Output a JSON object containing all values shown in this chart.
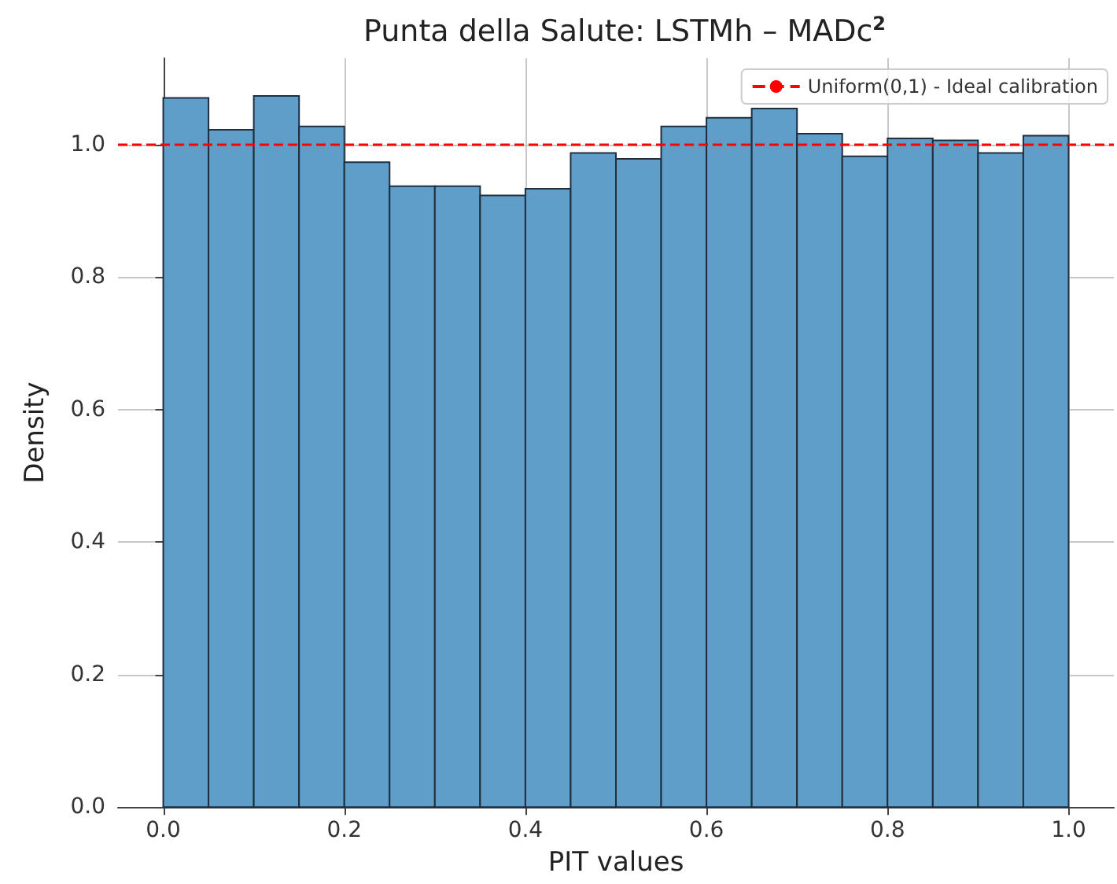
{
  "chart_data": {
    "type": "histogram",
    "title": "Punta della Salute: LSTMh – MADc$^{2}$",
    "xlabel": "PIT values",
    "ylabel": "Density",
    "bins": [
      0,
      0.05,
      0.1,
      0.15,
      0.2,
      0.25,
      0.3,
      0.35,
      0.4,
      0.45,
      0.5,
      0.55,
      0.6,
      0.65,
      0.7,
      0.75,
      0.8,
      0.85,
      0.9,
      0.95,
      1.0
    ],
    "values": [
      1.07,
      1.022,
      1.073,
      1.027,
      0.973,
      0.937,
      0.937,
      0.923,
      0.933,
      0.987,
      0.978,
      1.027,
      1.04,
      1.054,
      1.016,
      0.982,
      1.009,
      1.006,
      0.987,
      1.013
    ],
    "color": "#5f9ec9",
    "xlim": [
      -0.05,
      1.05
    ],
    "xticks": [
      {
        "value": 0,
        "label": "0.0"
      },
      {
        "value": 0.2,
        "label": "0.2"
      },
      {
        "value": 0.4,
        "label": "0.4"
      },
      {
        "value": 0.6,
        "label": "0.6"
      },
      {
        "value": 0.8,
        "label": "0.8"
      },
      {
        "value": 1,
        "label": "1.0"
      }
    ],
    "ylim": [
      0,
      1.13
    ],
    "yticks": [
      {
        "value": 0,
        "label": "0.0"
      },
      {
        "value": 0.2,
        "label": "0.2"
      },
      {
        "value": 0.4,
        "label": "0.4"
      },
      {
        "value": 0.6,
        "label": "0.6"
      },
      {
        "value": 0.8,
        "label": "0.8"
      },
      {
        "value": 1,
        "label": "1.0"
      }
    ],
    "grid": true,
    "legend": "top right",
    "ref_lines": [
      {
        "axis": "y",
        "value": 1.0,
        "label": "Uniform(0,1) - Ideal calibration",
        "color": "#ff0000",
        "line_style": "dashed"
      }
    ]
  }
}
